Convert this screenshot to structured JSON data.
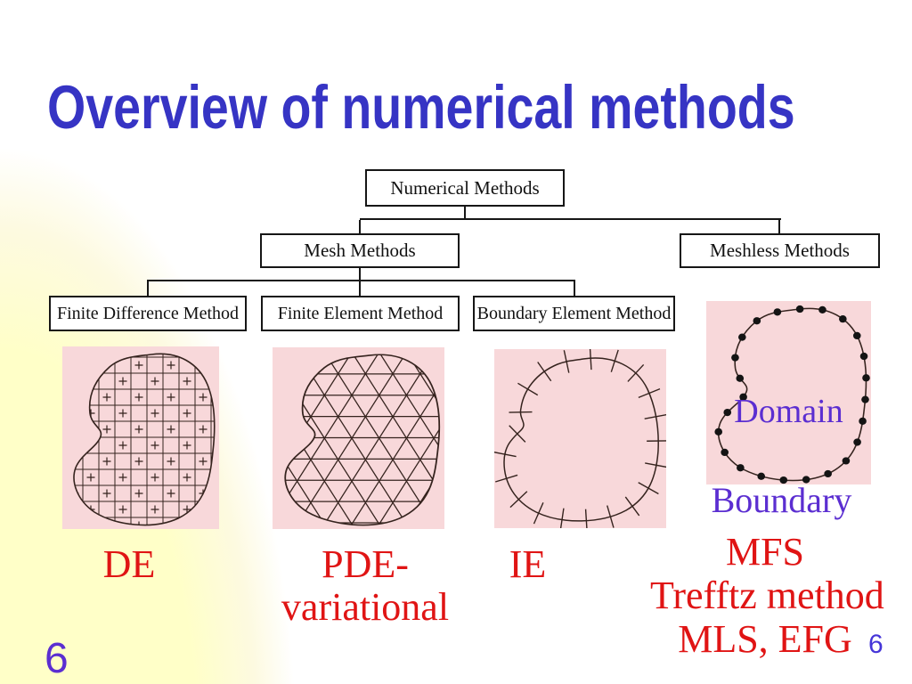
{
  "slide": {
    "title": "Overview of numerical methods",
    "footer_page_number": "6",
    "corner_page_number": "6"
  },
  "flowchart": {
    "root": "Numerical Methods",
    "mesh": "Mesh Methods",
    "meshless": "Meshless Methods",
    "fdm": "Finite Difference Method",
    "fem": "Finite Element Method",
    "bem": "Boundary Element Method"
  },
  "figures": {
    "fdm_caption": "DE",
    "fem_caption_line1": "PDE-",
    "fem_caption_line2": "variational",
    "bem_caption": "IE",
    "mfs_caption_line1": "MFS",
    "mfs_caption_line2": "Trefftz method",
    "mfs_caption_line3": "MLS, EFG",
    "domain_label": "Domain",
    "boundary_label": "Boundary"
  },
  "colors": {
    "title_blue": "#3634C4",
    "caption_red": "#E01414",
    "annotation_purple": "#5B2ED1",
    "figure_pink": "#F8D8DA",
    "background_yellow": "#FFFFC8",
    "connector_black": "#161616",
    "sketch_ink": "#35231E"
  }
}
